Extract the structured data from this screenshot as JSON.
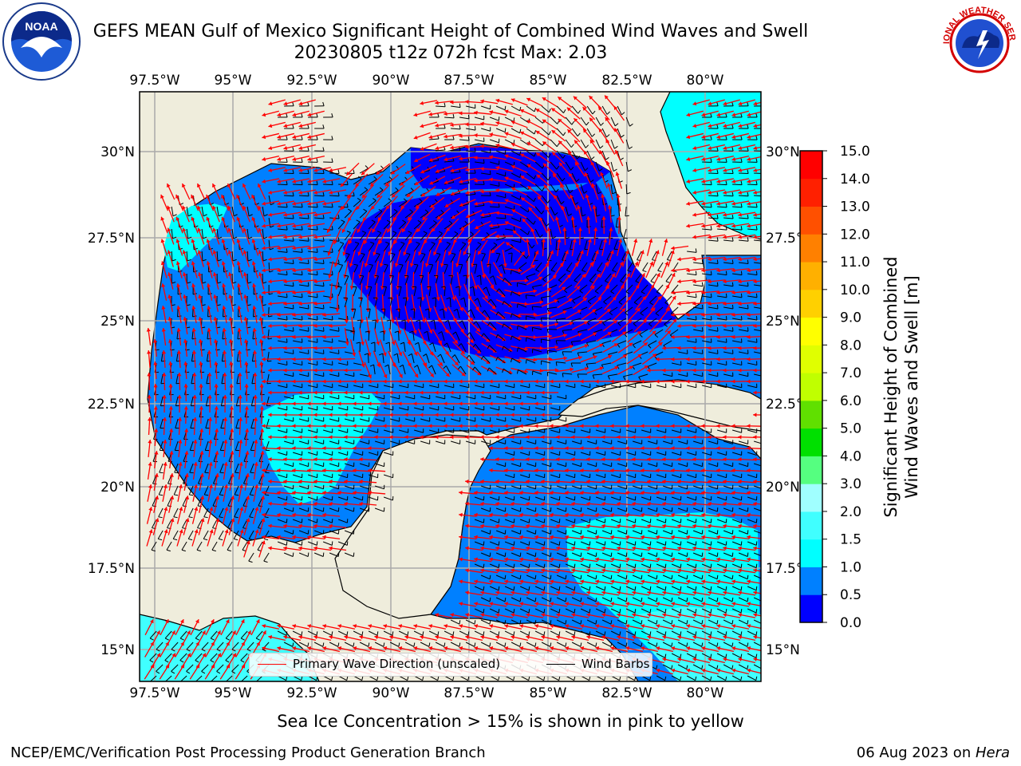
{
  "header": {
    "title_line1": "GEFS MEAN Gulf of Mexico Significant Height of Combined Wind Waves and Swell",
    "title_line2": "20230805 t12z 072h fcst   Max: 2.03"
  },
  "logos": {
    "left": "NOAA",
    "right": "NATIONAL WEATHER SERVICE"
  },
  "map": {
    "lon_ticks": [
      "97.5°W",
      "95°W",
      "92.5°W",
      "90°W",
      "87.5°W",
      "85°W",
      "82.5°W",
      "80°W"
    ],
    "lat_ticks": [
      "30°N",
      "27.5°N",
      "25°N",
      "22.5°N",
      "20°N",
      "17.5°N",
      "15°N"
    ],
    "colors": {
      "land": "#efeddc",
      "grid": "#aaaaaa",
      "wave_arrow": "#ff0000",
      "barb": "#000000"
    }
  },
  "legend": {
    "wave_direction": "Primary Wave Direction (unscaled)",
    "wind_barbs": "Wind Barbs"
  },
  "colorbar": {
    "label_line1": "Significant Height of Combined",
    "label_line2": "Wind Waves and Swell [m]",
    "ticks": [
      "0.0",
      "0.5",
      "1.0",
      "1.5",
      "2.0",
      "3.0",
      "4.0",
      "5.0",
      "6.0",
      "7.0",
      "8.0",
      "9.0",
      "10.0",
      "11.0",
      "12.0",
      "13.0",
      "14.0",
      "15.0"
    ],
    "colors": [
      "#0000ff",
      "#0080ff",
      "#00ffff",
      "#40ffff",
      "#a0ffff",
      "#55ff80",
      "#00e000",
      "#60e000",
      "#c0ff00",
      "#e0ff00",
      "#ffff00",
      "#ffd000",
      "#ffb000",
      "#ff8000",
      "#ff5000",
      "#ff2000",
      "#ff0000"
    ]
  },
  "footer": {
    "sea_ice_note": "Sea Ice Concentration > 15% is shown in pink to yellow",
    "credit": "NCEP/EMC/Verification Post Processing Product Generation Branch",
    "date_stamp_prefix": "06 Aug 2023 on ",
    "date_stamp_machine": "Hera"
  }
}
